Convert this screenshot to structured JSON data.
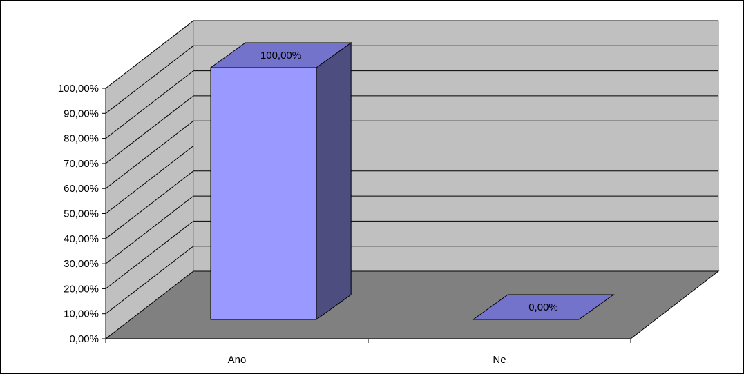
{
  "chart_data": {
    "type": "bar",
    "categories": [
      "Ano",
      "Ne"
    ],
    "values": [
      100,
      0
    ],
    "value_labels": [
      "100,00%",
      "0,00%"
    ],
    "ylim": [
      0,
      100
    ],
    "yticks": [
      0,
      10,
      20,
      30,
      40,
      50,
      60,
      70,
      80,
      90,
      100
    ],
    "ytick_labels": [
      "0,00%",
      "10,00%",
      "20,00%",
      "30,00%",
      "40,00%",
      "50,00%",
      "60,00%",
      "70,00%",
      "80,00%",
      "90,00%",
      "100,00%"
    ],
    "title": "",
    "xlabel": "",
    "ylabel": "",
    "grid": true,
    "legend": "none",
    "style": "3d-column",
    "colors": {
      "bar_front": "#9999FF",
      "bar_side": "#4D4D80",
      "bar_top": "#7373CC",
      "wall": "#C0C0C0",
      "floor": "#808080"
    }
  }
}
